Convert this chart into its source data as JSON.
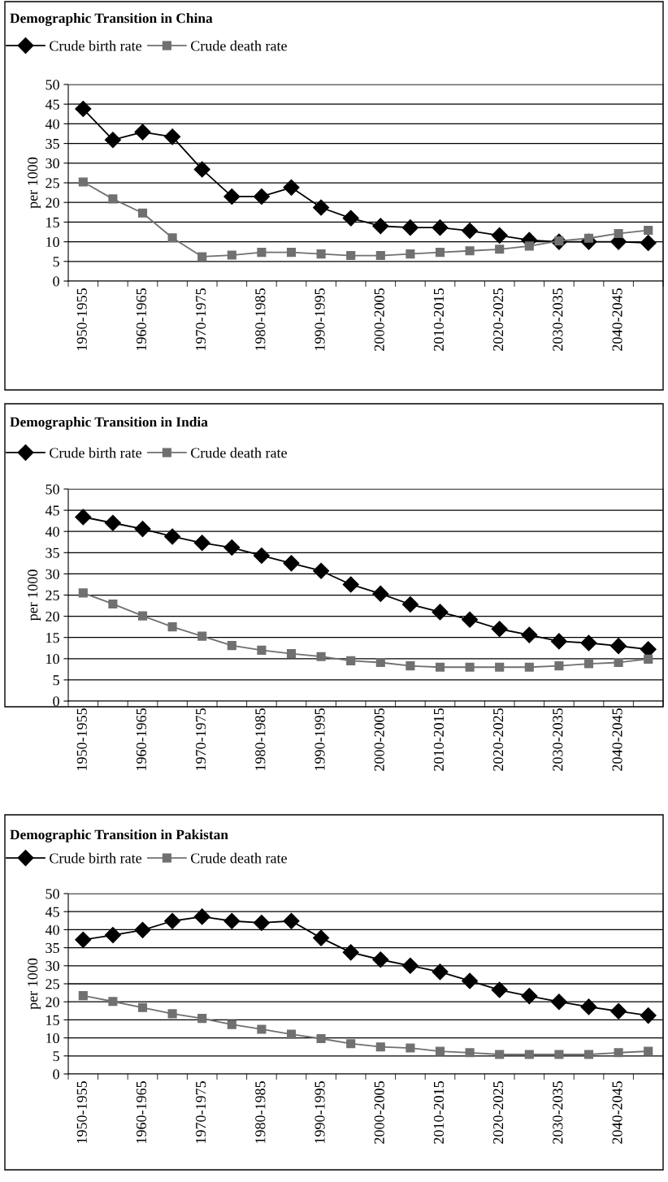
{
  "chart_data": [
    {
      "type": "line",
      "title": "Demographic Transition in China",
      "ylabel": "per 1000",
      "categories": [
        "1950-1955",
        null,
        "1960-1965",
        null,
        "1970-1975",
        null,
        "1980-1985",
        null,
        "1990-1995",
        null,
        "2000-2005",
        null,
        "2010-2015",
        null,
        "2020-2025",
        null,
        "2030-2035",
        null,
        "2040-2045",
        null
      ],
      "ylim": [
        0,
        50
      ],
      "yticks": [
        0,
        5,
        10,
        15,
        20,
        25,
        30,
        35,
        40,
        45,
        50
      ],
      "grid": "y",
      "legend": "top left",
      "series": [
        {
          "name": "Crude birth rate",
          "color": "#000000",
          "marker": "diamond",
          "values": [
            43.8,
            35.9,
            37.9,
            36.7,
            28.4,
            21.5,
            21.5,
            23.8,
            18.7,
            16.0,
            14.0,
            13.6,
            13.6,
            12.8,
            11.6,
            10.4,
            10.0,
            10.0,
            10.0,
            9.7
          ]
        },
        {
          "name": "Crude death rate",
          "color": "#707070",
          "marker": "square",
          "values": [
            25.2,
            20.9,
            17.3,
            11.0,
            6.2,
            6.6,
            7.3,
            7.3,
            6.9,
            6.5,
            6.5,
            6.9,
            7.3,
            7.7,
            8.1,
            8.9,
            10.2,
            10.9,
            12.1,
            12.9
          ]
        }
      ]
    },
    {
      "type": "line",
      "title": "Demographic Transition in India",
      "ylabel": "per 1000",
      "categories": [
        "1950-1955",
        null,
        "1960-1965",
        null,
        "1970-1975",
        null,
        "1980-1985",
        null,
        "1990-1995",
        null,
        "2000-2005",
        null,
        "2010-2015",
        null,
        "2020-2025",
        null,
        "2030-2035",
        null,
        "2040-2045",
        null
      ],
      "ylim": [
        0,
        50
      ],
      "yticks": [
        0,
        5,
        10,
        15,
        20,
        25,
        30,
        35,
        40,
        45,
        50
      ],
      "grid": "y",
      "legend": "top left",
      "series": [
        {
          "name": "Crude birth rate",
          "color": "#000000",
          "marker": "diamond",
          "values": [
            43.4,
            42.0,
            40.6,
            38.8,
            37.3,
            36.2,
            34.3,
            32.5,
            30.7,
            27.5,
            25.3,
            22.8,
            21.0,
            19.2,
            17.0,
            15.6,
            14.1,
            13.7,
            13.0,
            12.2
          ]
        },
        {
          "name": "Crude death rate",
          "color": "#707070",
          "marker": "square",
          "values": [
            25.5,
            22.9,
            20.1,
            17.5,
            15.3,
            13.1,
            12.0,
            11.2,
            10.5,
            9.5,
            9.1,
            8.3,
            8.0,
            8.0,
            8.0,
            8.0,
            8.3,
            8.8,
            9.1,
            9.9
          ]
        }
      ]
    },
    {
      "type": "line",
      "title": "Demographic Transition in Pakistan",
      "ylabel": "per 1000",
      "categories": [
        "1950-1955",
        null,
        "1960-1965",
        null,
        "1970-1975",
        null,
        "1980-1985",
        null,
        "1990-1995",
        null,
        "2000-2005",
        null,
        "2010-2015",
        null,
        "2020-2025",
        null,
        "2030-2035",
        null,
        "2040-2045",
        null
      ],
      "ylim": [
        0,
        50
      ],
      "yticks": [
        0,
        5,
        10,
        15,
        20,
        25,
        30,
        35,
        40,
        45,
        50
      ],
      "grid": "y",
      "legend": "top left",
      "series": [
        {
          "name": "Crude birth rate",
          "color": "#000000",
          "marker": "diamond",
          "values": [
            37.2,
            38.5,
            39.9,
            42.4,
            43.6,
            42.4,
            41.9,
            42.4,
            37.7,
            33.7,
            31.7,
            30.0,
            28.3,
            25.8,
            23.3,
            21.6,
            20.0,
            18.6,
            17.4,
            16.2
          ]
        },
        {
          "name": "Crude death rate",
          "color": "#707070",
          "marker": "square",
          "values": [
            21.7,
            20.1,
            18.4,
            16.7,
            15.4,
            13.7,
            12.4,
            11.0,
            9.8,
            8.4,
            7.5,
            7.2,
            6.3,
            5.9,
            5.4,
            5.4,
            5.4,
            5.4,
            5.9,
            6.3
          ]
        }
      ]
    }
  ]
}
